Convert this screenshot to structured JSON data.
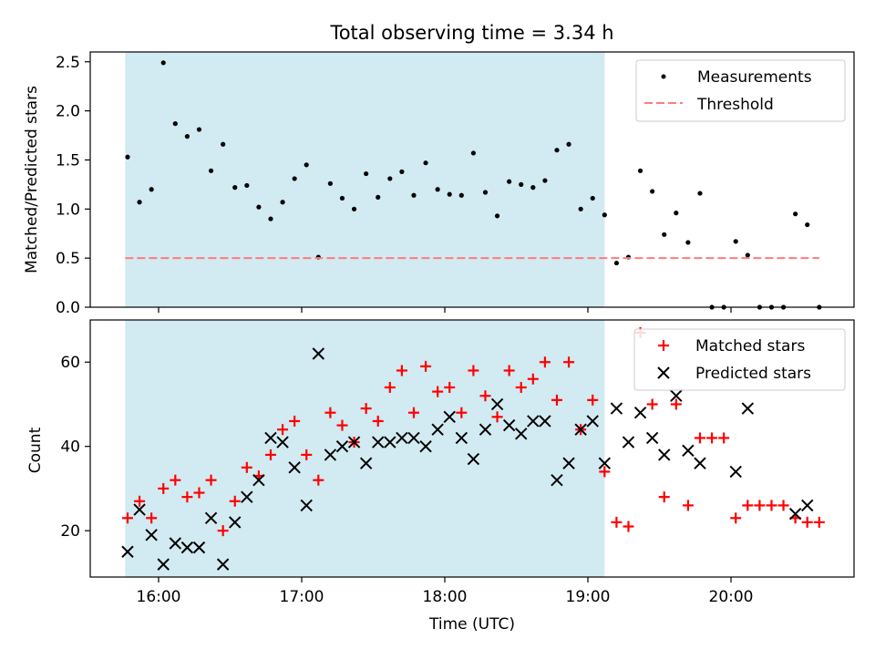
{
  "chart_data": [
    {
      "type": "scatter",
      "title": "Total observing time = 3.34 h",
      "xlabel": "",
      "ylabel": "Matched/Predicted stars",
      "ylim": [
        0,
        2.6
      ],
      "yticks": [
        "0.0",
        "0.5",
        "1.0",
        "1.5",
        "2.0",
        "2.5"
      ],
      "grid": false,
      "legend_position": "top-right",
      "shaded_interval": [
        "15:46",
        "19:07"
      ],
      "shade_color": "#add8e6",
      "legend": [
        "Measurements",
        "Threshold"
      ],
      "series": [
        {
          "name": "Measurements",
          "marker": "dot",
          "color": "#000000",
          "x": [
            "15:47",
            "15:52",
            "15:57",
            "16:02",
            "16:07",
            "16:12",
            "16:17",
            "16:22",
            "16:27",
            "16:32",
            "16:37",
            "16:42",
            "16:47",
            "16:52",
            "16:57",
            "17:02",
            "17:07",
            "17:12",
            "17:17",
            "17:22",
            "17:27",
            "17:32",
            "17:37",
            "17:42",
            "17:47",
            "17:52",
            "17:57",
            "18:02",
            "18:07",
            "18:12",
            "18:17",
            "18:22",
            "18:27",
            "18:32",
            "18:37",
            "18:42",
            "18:47",
            "18:52",
            "18:57",
            "19:02",
            "19:07",
            "19:12",
            "19:17",
            "19:22",
            "19:27",
            "19:32",
            "19:37",
            "19:42",
            "19:47",
            "19:52",
            "19:57",
            "20:02",
            "20:07",
            "20:12",
            "20:17",
            "20:22",
            "20:27",
            "20:32",
            "20:37"
          ],
          "y": [
            1.53,
            1.07,
            1.2,
            2.49,
            1.87,
            1.74,
            1.81,
            1.39,
            1.66,
            1.22,
            1.24,
            1.02,
            0.9,
            1.07,
            1.31,
            1.45,
            0.51,
            1.26,
            1.11,
            1.0,
            1.36,
            1.12,
            1.31,
            1.38,
            1.14,
            1.47,
            1.2,
            1.15,
            1.14,
            1.57,
            1.17,
            0.93,
            1.28,
            1.25,
            1.22,
            1.29,
            1.6,
            1.66,
            1.0,
            1.11,
            0.94,
            0.45,
            0.51,
            1.39,
            1.18,
            0.74,
            0.96,
            0.66,
            1.16,
            0.0,
            0.0,
            0.67,
            0.53,
            0.0,
            0.0,
            0.0,
            0.95,
            0.84,
            0.0
          ]
        },
        {
          "name": "Threshold",
          "marker": "dashed-line",
          "color": "#ff7b7b",
          "x": [
            "15:46",
            "20:37"
          ],
          "y": [
            0.5,
            0.5
          ]
        }
      ]
    },
    {
      "type": "scatter",
      "title": "",
      "xlabel": "Time (UTC)",
      "ylabel": "Count",
      "ylim": [
        9,
        70
      ],
      "yticks": [
        "20",
        "40",
        "60"
      ],
      "xticks": [
        "16:00",
        "17:00",
        "18:00",
        "19:00",
        "20:00"
      ],
      "grid": false,
      "legend_position": "top-right",
      "shaded_interval": [
        "15:46",
        "19:07"
      ],
      "shade_color": "#add8e6",
      "legend": [
        "Matched stars",
        "Predicted stars"
      ],
      "series": [
        {
          "name": "Matched stars",
          "marker": "plus",
          "color": "#ff0000",
          "x": [
            "15:47",
            "15:52",
            "15:57",
            "16:02",
            "16:07",
            "16:12",
            "16:17",
            "16:22",
            "16:27",
            "16:32",
            "16:37",
            "16:42",
            "16:47",
            "16:52",
            "16:57",
            "17:02",
            "17:07",
            "17:12",
            "17:17",
            "17:22",
            "17:27",
            "17:32",
            "17:37",
            "17:42",
            "17:47",
            "17:52",
            "17:57",
            "18:02",
            "18:07",
            "18:12",
            "18:17",
            "18:22",
            "18:27",
            "18:32",
            "18:37",
            "18:42",
            "18:47",
            "18:52",
            "18:57",
            "19:02",
            "19:07",
            "19:12",
            "19:17",
            "19:22",
            "19:27",
            "19:32",
            "19:37",
            "19:42",
            "19:47",
            "19:52",
            "19:57",
            "20:02",
            "20:07",
            "20:12",
            "20:17",
            "20:22",
            "20:27",
            "20:32",
            "20:37"
          ],
          "y": [
            23,
            27,
            23,
            30,
            32,
            28,
            29,
            32,
            20,
            27,
            35,
            33,
            38,
            44,
            46,
            38,
            32,
            48,
            45,
            41,
            49,
            46,
            54,
            58,
            48,
            59,
            53,
            54,
            48,
            58,
            52,
            47,
            58,
            54,
            56,
            60,
            51,
            60,
            44,
            51,
            34,
            22,
            21,
            67,
            50,
            28,
            50,
            26,
            42,
            42,
            42,
            23,
            26,
            26,
            26,
            26,
            23,
            22,
            22
          ]
        },
        {
          "name": "Predicted stars",
          "marker": "x",
          "color": "#000000",
          "x": [
            "15:47",
            "15:52",
            "15:57",
            "16:02",
            "16:07",
            "16:12",
            "16:17",
            "16:22",
            "16:27",
            "16:32",
            "16:37",
            "16:42",
            "16:47",
            "16:52",
            "16:57",
            "17:02",
            "17:07",
            "17:12",
            "17:17",
            "17:22",
            "17:27",
            "17:32",
            "17:37",
            "17:42",
            "17:47",
            "17:52",
            "17:57",
            "18:02",
            "18:07",
            "18:12",
            "18:17",
            "18:22",
            "18:27",
            "18:32",
            "18:37",
            "18:42",
            "18:47",
            "18:52",
            "18:57",
            "19:02",
            "19:07",
            "19:12",
            "19:17",
            "19:22",
            "19:27",
            "19:32",
            "19:37",
            "19:42",
            "19:47",
            "19:52",
            "19:57",
            "20:02",
            "20:07",
            "20:12",
            "20:17",
            "20:22",
            "20:27",
            "20:32"
          ],
          "y": [
            15,
            25,
            19,
            12,
            17,
            16,
            16,
            23,
            12,
            22,
            28,
            32,
            42,
            41,
            35,
            26,
            62,
            38,
            40,
            41,
            36,
            41,
            41,
            42,
            42,
            40,
            44,
            47,
            42,
            37,
            44,
            50,
            45,
            43,
            46,
            46,
            32,
            36,
            44,
            46,
            36,
            49,
            41,
            48,
            42,
            38,
            52,
            39,
            36,
            null,
            null,
            34,
            49,
            null,
            null,
            null,
            24,
            26
          ]
        }
      ]
    }
  ]
}
